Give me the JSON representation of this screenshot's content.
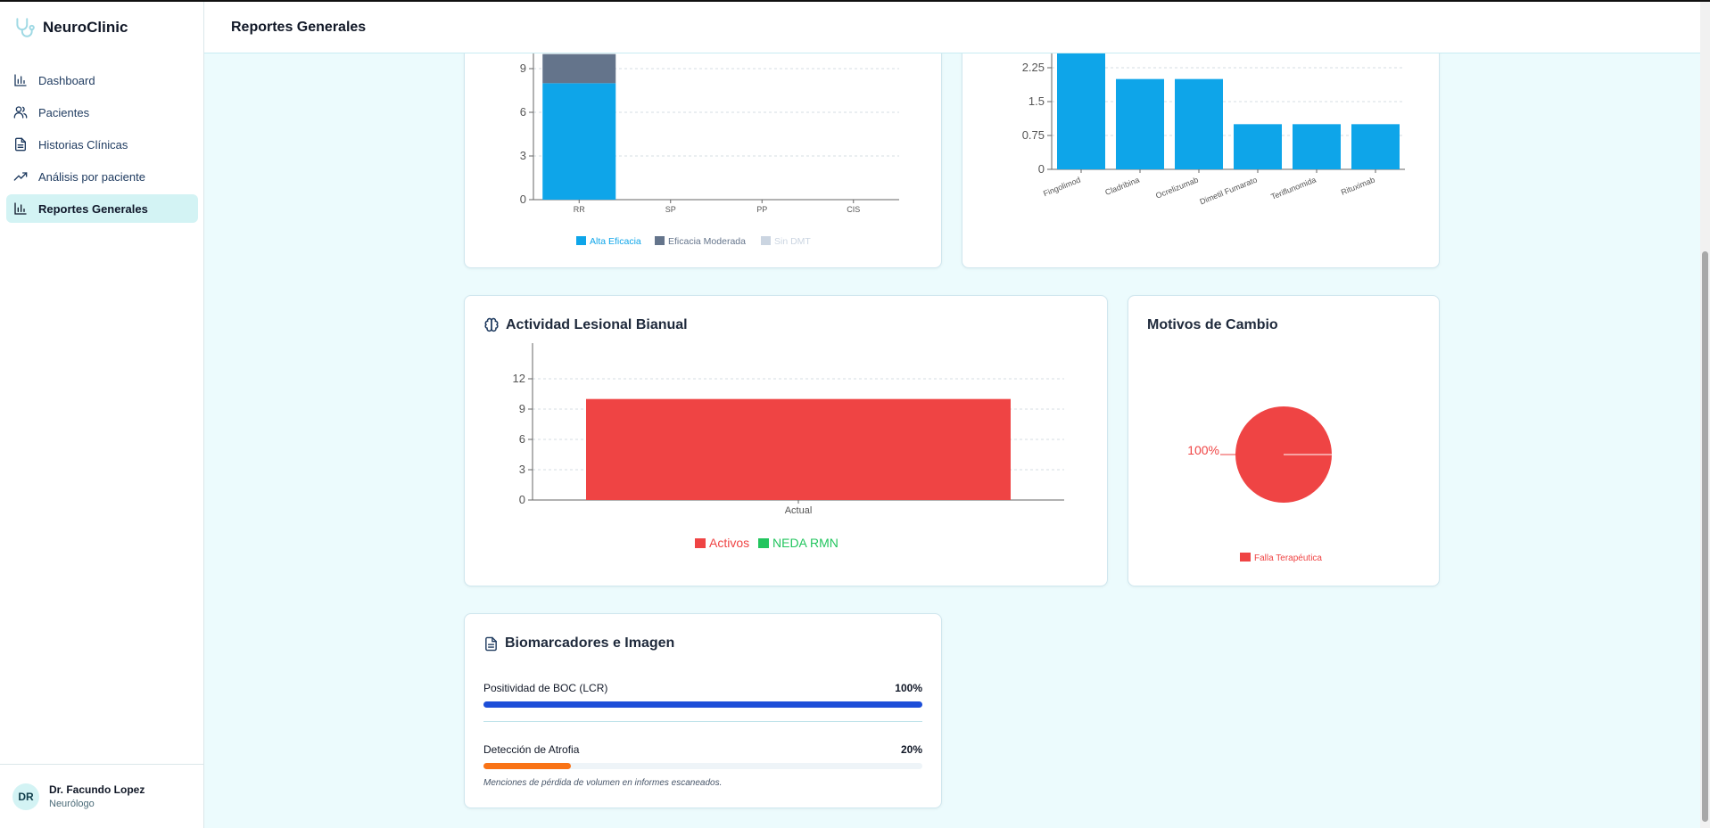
{
  "app": {
    "name": "NeuroClinic"
  },
  "header": {
    "title": "Reportes Generales"
  },
  "sidebar": {
    "items": [
      {
        "label": "Dashboard",
        "icon": "bar-chart-icon"
      },
      {
        "label": "Pacientes",
        "icon": "users-icon"
      },
      {
        "label": "Historias Clínicas",
        "icon": "file-text-icon"
      },
      {
        "label": "Análisis por paciente",
        "icon": "trending-up-icon"
      },
      {
        "label": "Reportes Generales",
        "icon": "bar-chart-icon",
        "active": true
      }
    ]
  },
  "user": {
    "initials": "DR",
    "name": "Dr. Facundo Lopez",
    "role": "Neurólogo"
  },
  "cards": {
    "dmt_by_phenotype": {
      "chart_data": {
        "type": "bar",
        "stacked": true,
        "categories": [
          "RR",
          "SP",
          "PP",
          "CIS"
        ],
        "series": [
          {
            "name": "Alta Eficacia",
            "values": [
              8,
              0,
              0,
              0
            ],
            "color": "#0ea5e9"
          },
          {
            "name": "Eficacia Moderada",
            "values": [
              2,
              0,
              0,
              0
            ],
            "color": "#64748b"
          },
          {
            "name": "Sin DMT",
            "values": [
              0,
              0,
              0,
              0
            ],
            "color": "#cbd5e1"
          }
        ],
        "yticks": [
          "0",
          "3",
          "6",
          "9"
        ],
        "ylim": [
          0,
          12
        ],
        "grid": true,
        "legend": "bottom"
      }
    },
    "drug_usage": {
      "chart_data": {
        "type": "bar",
        "categories": [
          "Fingolimod",
          "Cladribina",
          "Ocrelizumab",
          "Dimetil Fumarato",
          "Teriflunomida",
          "Rituximab"
        ],
        "values": [
          3,
          2,
          2,
          1,
          1,
          1
        ],
        "color": "#0ea5e9",
        "yticks": [
          "0",
          "0.75",
          "1.5",
          "2.25"
        ],
        "ylim": [
          0,
          3
        ],
        "grid": true
      }
    },
    "lesion_activity": {
      "title": "Actividad Lesional Bianual",
      "chart_data": {
        "type": "bar",
        "categories": [
          "Actual"
        ],
        "series": [
          {
            "name": "Activos",
            "values": [
              10
            ],
            "color": "#ef4444"
          },
          {
            "name": "NEDA RMN",
            "values": [
              0
            ],
            "color": "#22c55e"
          }
        ],
        "yticks": [
          "0",
          "3",
          "6",
          "9",
          "12"
        ],
        "ylim": [
          0,
          12
        ],
        "grid": true,
        "legend": "bottom"
      }
    },
    "change_reasons": {
      "title": "Motivos de Cambio",
      "chart_data": {
        "type": "pie",
        "slices": [
          {
            "label": "Falla Terapéutica",
            "value": 100,
            "color": "#ef4444"
          }
        ],
        "data_label": "100%",
        "legend": "bottom"
      }
    },
    "biomarkers": {
      "title": "Biomarcadores e Imagen",
      "rows": [
        {
          "label": "Positividad de BOC (LCR)",
          "pct": "100%",
          "value": 100,
          "color": "#1d4ed8"
        },
        {
          "label": "Detección de Atrofia",
          "pct": "20%",
          "value": 20,
          "color": "#f97316"
        }
      ],
      "note": "Menciones de pérdida de volumen en informes escaneados."
    }
  }
}
